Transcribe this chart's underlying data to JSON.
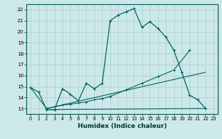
{
  "xlabel": "Humidex (Indice chaleur)",
  "bg_color": "#cce8e8",
  "grid_color": "#b0d0d0",
  "line_color": "#006060",
  "xlim": [
    -0.5,
    23.5
  ],
  "ylim": [
    12.5,
    22.5
  ],
  "xticks": [
    0,
    1,
    2,
    3,
    4,
    5,
    6,
    7,
    8,
    9,
    10,
    11,
    12,
    13,
    14,
    15,
    16,
    17,
    18,
    19,
    20,
    21,
    22,
    23
  ],
  "yticks": [
    13,
    14,
    15,
    16,
    17,
    18,
    19,
    20,
    21,
    22
  ],
  "line1_x": [
    0,
    1,
    2,
    3,
    4,
    5,
    6,
    7,
    8,
    9,
    10,
    11,
    12,
    13,
    14,
    15,
    16,
    17,
    18,
    19,
    20,
    21,
    22
  ],
  "line1_y": [
    14.9,
    14.5,
    12.9,
    12.9,
    14.8,
    14.3,
    13.7,
    15.3,
    14.8,
    15.3,
    21.0,
    21.5,
    21.8,
    22.1,
    20.4,
    20.9,
    20.3,
    19.5,
    18.3,
    16.3,
    14.2,
    13.8,
    13.0
  ],
  "line2_x": [
    2,
    22
  ],
  "line2_y": [
    12.9,
    13.0
  ],
  "line3_x": [
    0,
    2,
    4,
    5,
    6,
    7,
    8,
    9,
    10,
    12,
    14,
    16,
    18,
    20
  ],
  "line3_y": [
    14.9,
    13.0,
    13.3,
    13.4,
    13.5,
    13.6,
    13.8,
    13.9,
    14.1,
    14.7,
    15.3,
    15.9,
    16.5,
    18.3
  ],
  "line4_x": [
    2,
    22
  ],
  "line4_y": [
    13.0,
    16.3
  ]
}
